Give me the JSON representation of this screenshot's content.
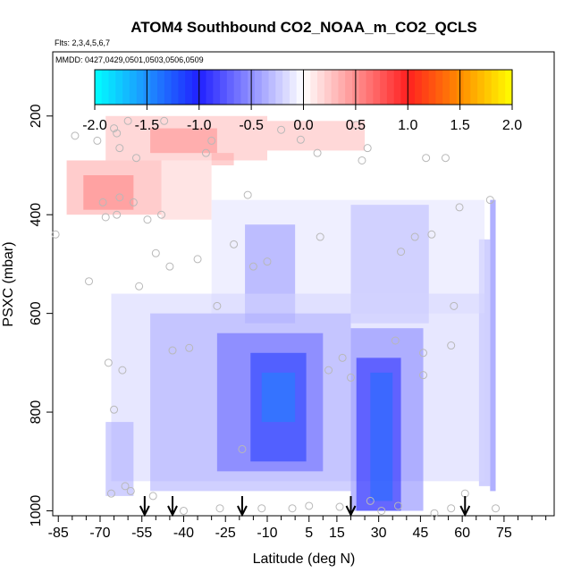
{
  "chart_data": {
    "type": "heatmap",
    "title": "ATOM4 Southbound CO2_NOAA_m_CO2_QCLS",
    "flights_label": "Flts: 2,3,4,5,6,7",
    "mmdd_label": "MMDD: 0427,0429,0501,0503,0506,0509",
    "xlabel": "Latitude (deg N)",
    "ylabel": "PSXC (mbar)",
    "xlim": [
      -87,
      93
    ],
    "ylim": [
      1010,
      70
    ],
    "x_ticks": [
      -85,
      -70,
      -55,
      -40,
      -25,
      -10,
      5,
      15,
      30,
      45,
      60,
      75
    ],
    "x_tick_labels": [
      "-85",
      "-70",
      "-55",
      "-40",
      "-25",
      "-10",
      "5",
      "15",
      "30",
      "45",
      "60",
      "75"
    ],
    "x_minor_ticks": [
      -80,
      -75,
      -65,
      -60,
      -50,
      -45,
      -35,
      -30,
      -20,
      -15,
      -5,
      0,
      10,
      20,
      25,
      35,
      40,
      50,
      55,
      65,
      70,
      80,
      85,
      90
    ],
    "y_ticks": [
      200,
      400,
      600,
      800,
      1000
    ],
    "y_tick_labels": [
      "200",
      "400",
      "600",
      "800",
      "1000"
    ],
    "colorbar": {
      "range": [
        -2.0,
        2.0
      ],
      "ticks": [
        -2.0,
        -1.5,
        -1.0,
        -0.5,
        0.0,
        0.5,
        1.0,
        1.5,
        2.0
      ],
      "tick_labels": [
        "-2.0",
        "-1.5",
        "-1.0",
        "-0.5",
        "0.0",
        "0.5",
        "1.0",
        "1.5",
        "2.0"
      ],
      "colors": {
        "min": "#00ffff",
        "low": "#1e90ff",
        "mid_low": "#2020ff",
        "zero": "#ffffff",
        "mid_high": "#ff2020",
        "high": "#ff8c00",
        "max": "#ffff00"
      }
    },
    "arrow_latitudes": [
      -54,
      -44,
      -19,
      20,
      61
    ],
    "cells": [
      {
        "lat": [
          -68,
          -10
        ],
        "p": [
          200,
          290
        ],
        "value": 0.1
      },
      {
        "lat": [
          -52,
          -28
        ],
        "p": [
          225,
          275
        ],
        "value": 0.16
      },
      {
        "lat": [
          -10,
          25
        ],
        "p": [
          210,
          270
        ],
        "value": 0.1
      },
      {
        "lat": [
          -82,
          -48
        ],
        "p": [
          290,
          400
        ],
        "value": 0.13
      },
      {
        "lat": [
          -76,
          -58
        ],
        "p": [
          320,
          390
        ],
        "value": 0.18
      },
      {
        "lat": [
          -48,
          -30
        ],
        "p": [
          290,
          410
        ],
        "value": 0.07
      },
      {
        "lat": [
          -30,
          -22
        ],
        "p": [
          275,
          300
        ],
        "value": 0.12
      },
      {
        "lat": [
          70,
          72
        ],
        "p": [
          370,
          960
        ],
        "value": -0.2
      },
      {
        "lat": [
          66,
          70
        ],
        "p": [
          450,
          950
        ],
        "value": -0.12
      },
      {
        "lat": [
          -30,
          68
        ],
        "p": [
          370,
          600
        ],
        "value": -0.04
      },
      {
        "lat": [
          -18,
          0
        ],
        "p": [
          420,
          620
        ],
        "value": -0.15
      },
      {
        "lat": [
          20,
          48
        ],
        "p": [
          380,
          620
        ],
        "value": -0.1
      },
      {
        "lat": [
          -66,
          68
        ],
        "p": [
          560,
          940
        ],
        "value": -0.06
      },
      {
        "lat": [
          -52,
          20
        ],
        "p": [
          600,
          960
        ],
        "value": -0.12
      },
      {
        "lat": [
          -28,
          10
        ],
        "p": [
          640,
          920
        ],
        "value": -0.22
      },
      {
        "lat": [
          -16,
          4
        ],
        "p": [
          680,
          900
        ],
        "value": -0.35
      },
      {
        "lat": [
          -12,
          0
        ],
        "p": [
          720,
          820
        ],
        "value": -0.45
      },
      {
        "lat": [
          20,
          46
        ],
        "p": [
          630,
          1000
        ],
        "value": -0.18
      },
      {
        "lat": [
          22,
          38
        ],
        "p": [
          690,
          1000
        ],
        "value": -0.32
      },
      {
        "lat": [
          27,
          35
        ],
        "p": [
          720,
          980
        ],
        "value": -0.42
      },
      {
        "lat": [
          -68,
          -58
        ],
        "p": [
          820,
          970
        ],
        "value": -0.12
      }
    ],
    "sample_points": [
      {
        "lat": -86,
        "p": 440
      },
      {
        "lat": -79,
        "p": 240
      },
      {
        "lat": -74,
        "p": 535
      },
      {
        "lat": -71,
        "p": 250
      },
      {
        "lat": -69,
        "p": 375
      },
      {
        "lat": -68,
        "p": 405
      },
      {
        "lat": -67,
        "p": 700
      },
      {
        "lat": -66,
        "p": 965
      },
      {
        "lat": -65,
        "p": 225
      },
      {
        "lat": -65,
        "p": 795
      },
      {
        "lat": -64,
        "p": 400
      },
      {
        "lat": -64,
        "p": 235
      },
      {
        "lat": -63,
        "p": 265
      },
      {
        "lat": -63,
        "p": 365
      },
      {
        "lat": -62,
        "p": 715
      },
      {
        "lat": -61,
        "p": 950
      },
      {
        "lat": -60,
        "p": 210
      },
      {
        "lat": -59,
        "p": 960
      },
      {
        "lat": -58,
        "p": 375
      },
      {
        "lat": -57,
        "p": 285
      },
      {
        "lat": -56,
        "p": 545
      },
      {
        "lat": -53,
        "p": 410
      },
      {
        "lat": -51,
        "p": 970
      },
      {
        "lat": -50,
        "p": 478
      },
      {
        "lat": -48,
        "p": 400
      },
      {
        "lat": -47,
        "p": 210
      },
      {
        "lat": -45,
        "p": 505
      },
      {
        "lat": -44,
        "p": 675
      },
      {
        "lat": -40,
        "p": 1000
      },
      {
        "lat": -38,
        "p": 670
      },
      {
        "lat": -35,
        "p": 490
      },
      {
        "lat": -32,
        "p": 275
      },
      {
        "lat": -30,
        "p": 250
      },
      {
        "lat": -28,
        "p": 585
      },
      {
        "lat": -27,
        "p": 995
      },
      {
        "lat": -22,
        "p": 460
      },
      {
        "lat": -19,
        "p": 875
      },
      {
        "lat": -17,
        "p": 360
      },
      {
        "lat": -15,
        "p": 505
      },
      {
        "lat": -12,
        "p": 995
      },
      {
        "lat": -10,
        "p": 495
      },
      {
        "lat": -5,
        "p": 228
      },
      {
        "lat": -1,
        "p": 995
      },
      {
        "lat": 2,
        "p": 248
      },
      {
        "lat": 5,
        "p": 990
      },
      {
        "lat": 8,
        "p": 275
      },
      {
        "lat": 9,
        "p": 445
      },
      {
        "lat": 12,
        "p": 715
      },
      {
        "lat": 16,
        "p": 992
      },
      {
        "lat": 17,
        "p": 690
      },
      {
        "lat": 20,
        "p": 730
      },
      {
        "lat": 22,
        "p": 218
      },
      {
        "lat": 24,
        "p": 290
      },
      {
        "lat": 26,
        "p": 265
      },
      {
        "lat": 27,
        "p": 980
      },
      {
        "lat": 31,
        "p": 1000
      },
      {
        "lat": 36,
        "p": 655
      },
      {
        "lat": 37,
        "p": 990
      },
      {
        "lat": 38,
        "p": 475
      },
      {
        "lat": 43,
        "p": 445
      },
      {
        "lat": 46,
        "p": 725
      },
      {
        "lat": 46,
        "p": 680
      },
      {
        "lat": 47,
        "p": 285
      },
      {
        "lat": 49,
        "p": 440
      },
      {
        "lat": 50,
        "p": 1005
      },
      {
        "lat": 54,
        "p": 285
      },
      {
        "lat": 56,
        "p": 995
      },
      {
        "lat": 56,
        "p": 665
      },
      {
        "lat": 57,
        "p": 585
      },
      {
        "lat": 59,
        "p": 385
      },
      {
        "lat": 61,
        "p": 965
      },
      {
        "lat": 70,
        "p": 370
      },
      {
        "lat": 72,
        "p": 995
      }
    ]
  }
}
